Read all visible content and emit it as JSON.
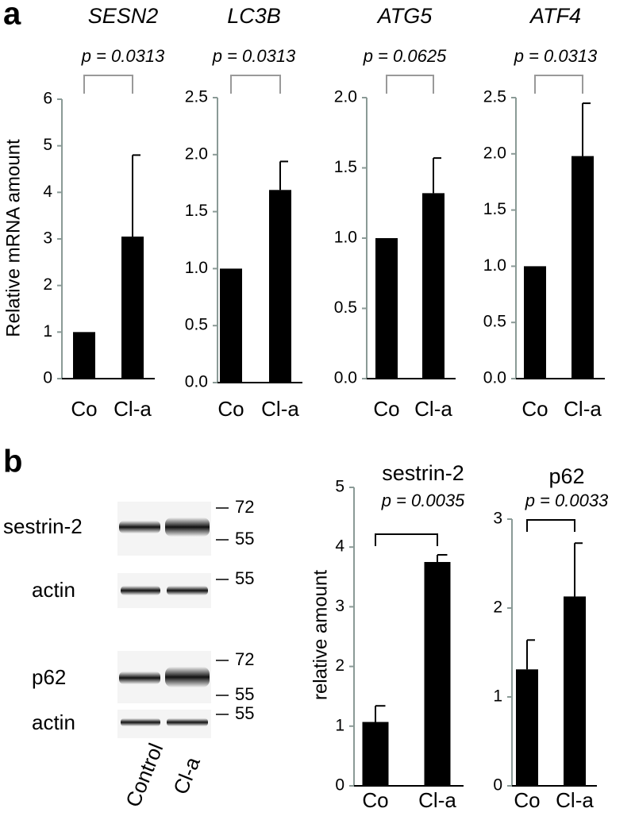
{
  "panel_labels": [
    "a",
    "b"
  ],
  "blot": {
    "rows": [
      {
        "label": "sestrin-2",
        "markers": [
          72,
          55
        ]
      },
      {
        "label": "actin",
        "markers": [
          55
        ]
      },
      {
        "label": "p62",
        "markers": [
          72,
          55
        ]
      },
      {
        "label": "actin",
        "markers": [
          55
        ]
      }
    ],
    "lanes": [
      "Control",
      "Cl-a"
    ]
  },
  "chart_data": [
    {
      "type": "bar",
      "title": "SESN2",
      "annotation": "p = 0.0313",
      "y_label": "Relative mRNA amount",
      "categories": [
        "Co",
        "Cl-a"
      ],
      "values": [
        1,
        3.05
      ],
      "errors": [
        0,
        1.75
      ],
      "color": "#000000",
      "ylim": [
        0,
        6
      ],
      "yticks": [
        0,
        1,
        2,
        3,
        4,
        5,
        6
      ]
    },
    {
      "type": "bar",
      "title": "LC3B",
      "annotation": "p = 0.0313",
      "categories": [
        "Co",
        "Cl-a"
      ],
      "values": [
        1,
        1.69
      ],
      "errors": [
        0,
        0.25
      ],
      "color": "#000000",
      "ylim": [
        0,
        2.5
      ],
      "yticks": [
        {
          "value": 0,
          "label": "0.0"
        },
        0.5,
        {
          "value": 1,
          "label": "1.0"
        },
        1.5,
        {
          "value": 2,
          "label": "2.0"
        },
        2.5
      ]
    },
    {
      "type": "bar",
      "title": "ATG5",
      "annotation": "p = 0.0625",
      "categories": [
        "Co",
        "Cl-a"
      ],
      "values": [
        1,
        1.32
      ],
      "errors": [
        0,
        0.25
      ],
      "color": "#000000",
      "ylim": [
        0,
        2
      ],
      "yticks": [
        {
          "value": 0,
          "label": "0.0"
        },
        0.5,
        {
          "value": 1,
          "label": "1.0"
        },
        1.5,
        {
          "value": 2,
          "label": "2.0"
        }
      ]
    },
    {
      "type": "bar",
      "title": "ATF4",
      "annotation": "p = 0.0313",
      "categories": [
        "Co",
        "Cl-a"
      ],
      "values": [
        1,
        1.98
      ],
      "errors": [
        0,
        0.47
      ],
      "color": "#000000",
      "ylim": [
        0,
        2.5
      ],
      "yticks": [
        {
          "value": 0,
          "label": "0.0"
        },
        0.5,
        {
          "value": 1,
          "label": "1.0"
        },
        1.5,
        {
          "value": 2,
          "label": "2.0"
        },
        2.5
      ]
    },
    {
      "type": "bar",
      "title": "sestrin-2",
      "annotation": "p = 0.0035",
      "y_label": "relative amount",
      "categories": [
        "Co",
        "Cl-a"
      ],
      "values": [
        1.07,
        3.75
      ],
      "errors": [
        0.27,
        0.12
      ],
      "color": "#000000",
      "ylim": [
        0,
        5
      ],
      "yticks": [
        0,
        1,
        2,
        3,
        4,
        5
      ]
    },
    {
      "type": "bar",
      "title": "p62",
      "annotation": "p = 0.0033",
      "categories": [
        "Co",
        "Cl-a"
      ],
      "values": [
        1.31,
        2.13
      ],
      "errors": [
        0.33,
        0.6
      ],
      "color": "#000000",
      "ylim": [
        0,
        3
      ],
      "yticks": [
        0,
        1,
        2,
        3
      ]
    }
  ]
}
